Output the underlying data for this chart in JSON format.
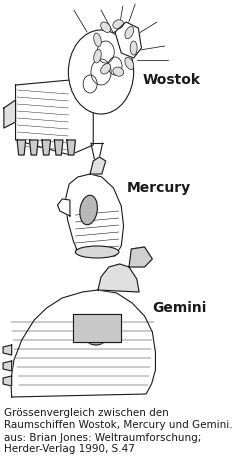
{
  "background_color": "#ffffff",
  "title_label_wostok": "Wostok",
  "title_label_mercury": "Mercury",
  "title_label_gemini": "Gemini",
  "caption_line1": "Grössenvergleich zwischen den",
  "caption_line2": "Raumschiffen Wostok, Mercury und Gemini.",
  "source_line1": "aus: Brian Jones: Weltraumforschung;",
  "source_line2": "Herder-Verlag 1990, S.47",
  "label_fontsize": 10,
  "caption_fontsize": 7.5,
  "source_fontsize": 7.5,
  "fig_width": 2.33,
  "fig_height": 4.59,
  "dpi": 100,
  "line_color": "#1a1a1a",
  "line_width": 0.8
}
